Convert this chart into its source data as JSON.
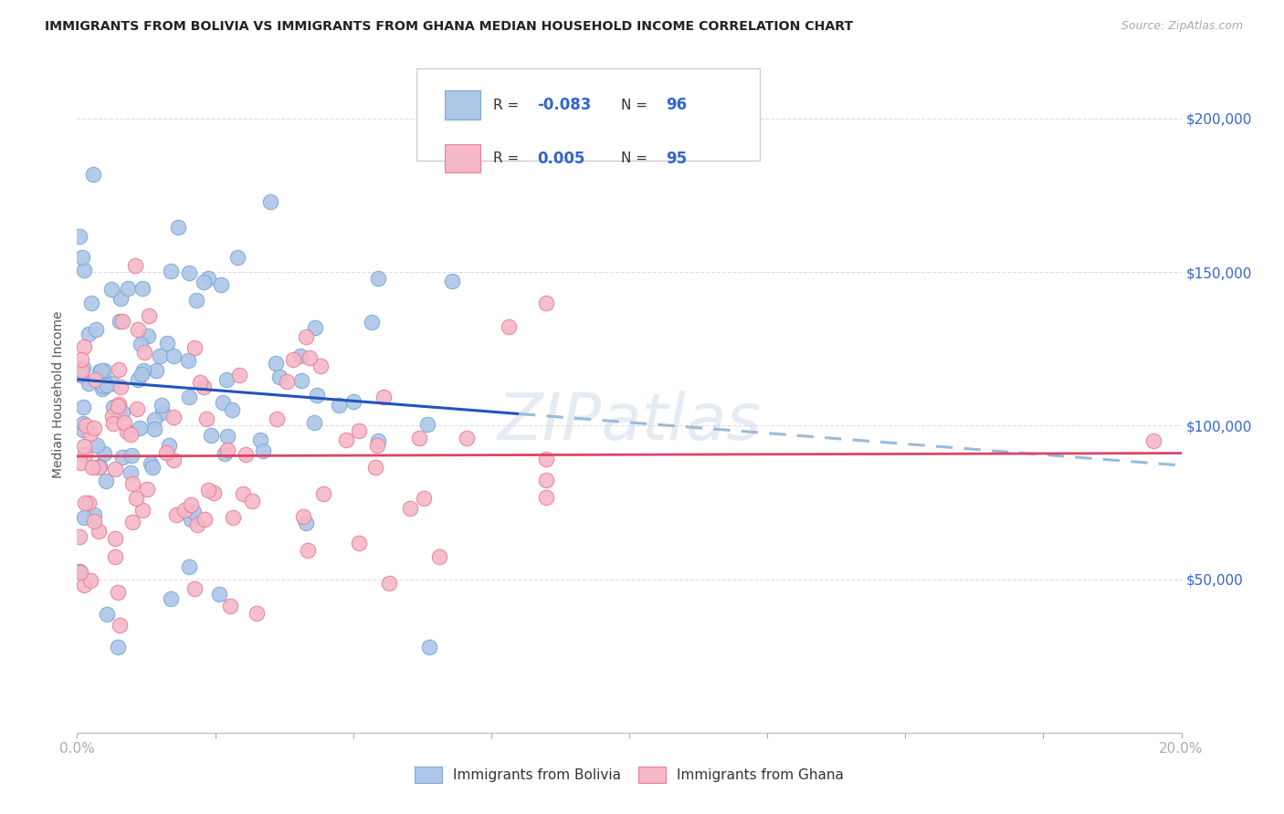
{
  "title": "IMMIGRANTS FROM BOLIVIA VS IMMIGRANTS FROM GHANA MEDIAN HOUSEHOLD INCOME CORRELATION CHART",
  "source": "Source: ZipAtlas.com",
  "ylabel": "Median Household Income",
  "bolivia_R": -0.083,
  "bolivia_N": 96,
  "ghana_R": 0.005,
  "ghana_N": 95,
  "bolivia_color": "#aec6e8",
  "ghana_color": "#f5b8c8",
  "bolivia_edge_color": "#7aaad4",
  "ghana_edge_color": "#e8809a",
  "bolivia_line_color": "#2255bb",
  "ghana_line_color": "#dd4466",
  "bolivia_dashed_color": "#99bbd8",
  "watermark": "ZIPatlas",
  "xlim": [
    0.0,
    0.2
  ],
  "ylim": [
    0,
    220000
  ],
  "yticks": [
    0,
    50000,
    100000,
    150000,
    200000
  ],
  "ytick_labels": [
    "",
    "$50,000",
    "$100,000",
    "$150,000",
    "$200,000"
  ],
  "bol_trend_y0": 115000,
  "bol_trend_y1": 87000,
  "gha_trend_y0": 90000,
  "gha_trend_y1": 91000
}
